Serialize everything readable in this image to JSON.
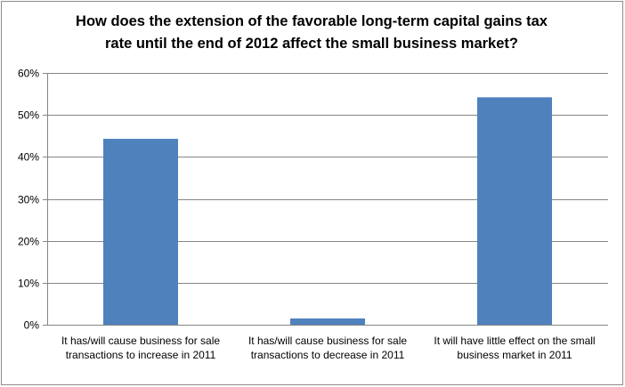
{
  "chart_data": {
    "type": "bar",
    "title_lines": [
      "How does the extension of the favorable long-term capital gains tax",
      "rate until the end of 2012 affect the small business market?"
    ],
    "categories": [
      [
        "It has/will cause business for sale",
        "transactions to  increase in 2011"
      ],
      [
        "It has/will cause business for sale",
        "transactions to  decrease in 2011"
      ],
      [
        "It will have little effect on the small",
        "business market in 2011"
      ]
    ],
    "values": [
      44.3,
      1.5,
      54.2
    ],
    "ylim": [
      0,
      60
    ],
    "yticks": [
      "0%",
      "10%",
      "20%",
      "30%",
      "40%",
      "50%",
      "60%"
    ],
    "ytick_values": [
      0,
      10,
      20,
      30,
      40,
      50,
      60
    ],
    "grid": true,
    "bar_color": "#4f81bd",
    "grid_color": "#868686"
  }
}
